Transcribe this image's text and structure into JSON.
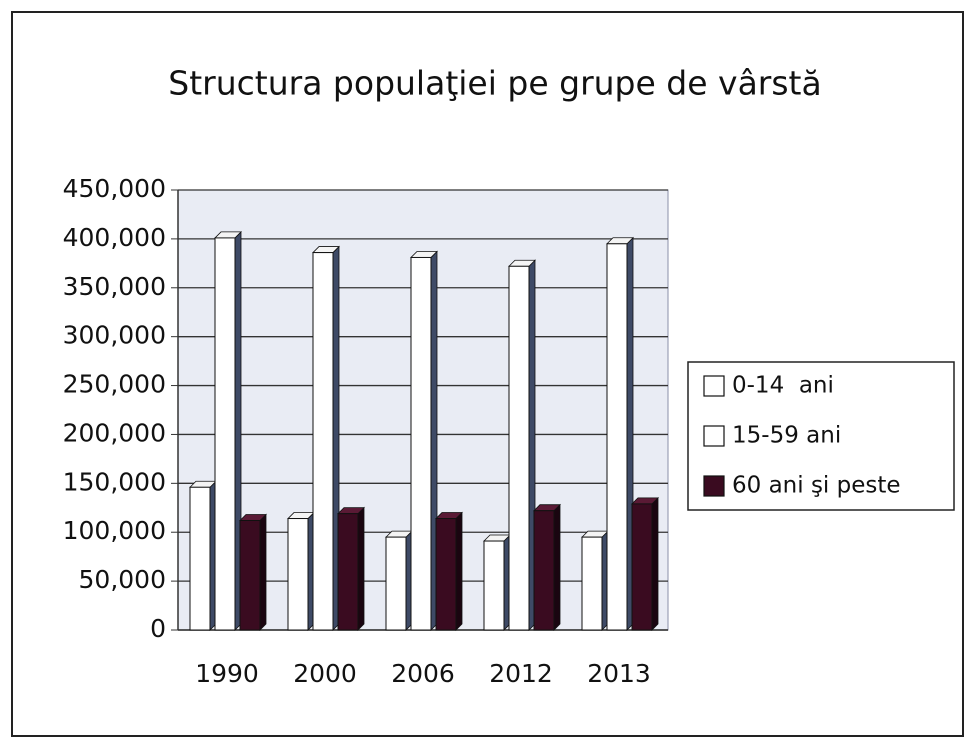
{
  "chart_data": {
    "type": "bar",
    "title": "Structura populaţiei pe grupe de vârstă",
    "categories": [
      "1990",
      "2000",
      "2006",
      "2012",
      "2013"
    ],
    "series": [
      {
        "name": "0-14  ani",
        "color": "#ffffff",
        "values": [
          146000,
          114000,
          95000,
          91000,
          95000
        ]
      },
      {
        "name": "15-59 ani",
        "color": "#ffffff",
        "values": [
          401000,
          386000,
          381000,
          372000,
          395000
        ]
      },
      {
        "name": "60 ani şi peste",
        "color": "#3a0b20",
        "values": [
          112000,
          119000,
          114000,
          122000,
          129000
        ]
      }
    ],
    "ylim": [
      0,
      450000
    ],
    "yticks": [
      0,
      {
        "value": 50000,
        "label": "50,000"
      },
      {
        "value": 100000,
        "label": "100,000"
      },
      {
        "value": 150000,
        "label": "150,000"
      },
      {
        "value": 200000,
        "label": "200,000"
      },
      {
        "value": 250000,
        "label": "250,000"
      },
      {
        "value": 300000,
        "label": "300,000"
      },
      {
        "value": 350000,
        "label": "350,000"
      },
      {
        "value": 400000,
        "label": "400,000"
      },
      {
        "value": 450000,
        "label": "450,000"
      }
    ],
    "grid": true,
    "legend": "right"
  }
}
